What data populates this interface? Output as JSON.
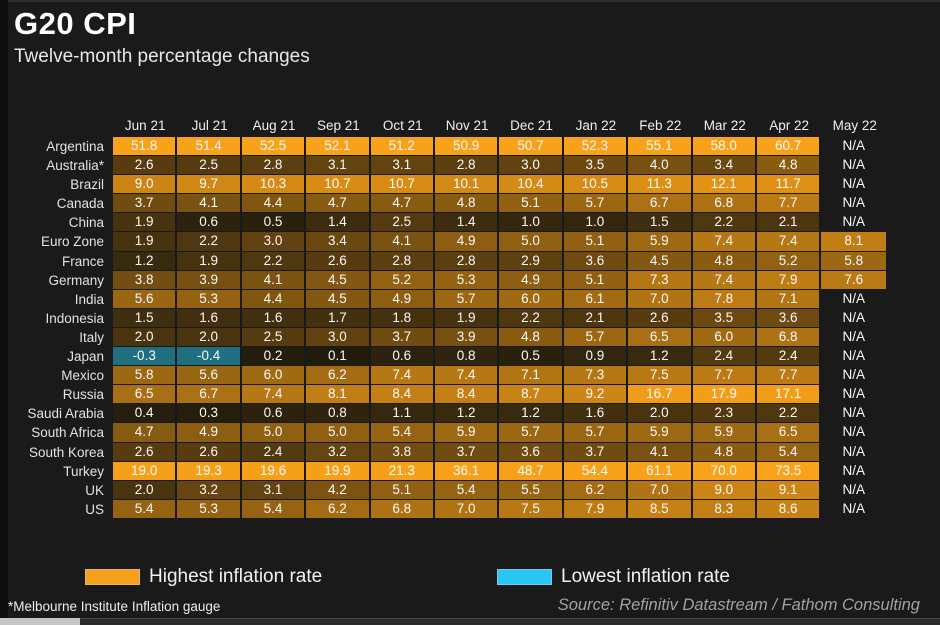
{
  "title": "G20 CPI",
  "subtitle": "Twelve-month percentage changes",
  "chart_data": {
    "type": "heatmap",
    "columns": [
      "Jun 21",
      "Jul 21",
      "Aug 21",
      "Sep 21",
      "Oct 21",
      "Nov 21",
      "Dec 21",
      "Jan 22",
      "Feb 22",
      "Mar 22",
      "Apr 22",
      "May 22"
    ],
    "na_label": "N/A",
    "rows": [
      {
        "label": "Argentina",
        "values": [
          "51.8",
          "51.4",
          "52.5",
          "52.1",
          "51.2",
          "50.9",
          "50.7",
          "52.3",
          "55.1",
          "58.0",
          "60.7",
          "N/A"
        ]
      },
      {
        "label": "Australia*",
        "values": [
          "2.6",
          "2.5",
          "2.8",
          "3.1",
          "3.1",
          "2.8",
          "3.0",
          "3.5",
          "4.0",
          "3.4",
          "4.8",
          "N/A"
        ]
      },
      {
        "label": "Brazil",
        "values": [
          "9.0",
          "9.7",
          "10.3",
          "10.7",
          "10.7",
          "10.1",
          "10.4",
          "10.5",
          "11.3",
          "12.1",
          "11.7",
          "N/A"
        ]
      },
      {
        "label": "Canada",
        "values": [
          "3.7",
          "4.1",
          "4.4",
          "4.7",
          "4.7",
          "4.8",
          "5.1",
          "5.7",
          "6.7",
          "6.8",
          "7.7",
          "N/A"
        ]
      },
      {
        "label": "China",
        "values": [
          "1.9",
          "0.6",
          "0.5",
          "1.4",
          "2.5",
          "1.4",
          "1.0",
          "1.0",
          "1.5",
          "2.2",
          "2.1",
          "N/A"
        ]
      },
      {
        "label": "Euro Zone",
        "values": [
          "1.9",
          "2.2",
          "3.0",
          "3.4",
          "4.1",
          "4.9",
          "5.0",
          "5.1",
          "5.9",
          "7.4",
          "7.4",
          "8.1"
        ]
      },
      {
        "label": "France",
        "values": [
          "1.2",
          "1.9",
          "2.2",
          "2.6",
          "2.8",
          "2.8",
          "2.9",
          "3.6",
          "4.5",
          "4.8",
          "5.2",
          "5.8"
        ]
      },
      {
        "label": "Germany",
        "values": [
          "3.8",
          "3.9",
          "4.1",
          "4.5",
          "5.2",
          "5.3",
          "4.9",
          "5.1",
          "7.3",
          "7.4",
          "7.9",
          "7.6"
        ]
      },
      {
        "label": "India",
        "values": [
          "5.6",
          "5.3",
          "4.4",
          "4.5",
          "4.9",
          "5.7",
          "6.0",
          "6.1",
          "7.0",
          "7.8",
          "7.1",
          "N/A"
        ]
      },
      {
        "label": "Indonesia",
        "values": [
          "1.5",
          "1.6",
          "1.6",
          "1.7",
          "1.8",
          "1.9",
          "2.2",
          "2.1",
          "2.6",
          "3.5",
          "3.6",
          "N/A"
        ]
      },
      {
        "label": "Italy",
        "values": [
          "2.0",
          "2.0",
          "2.5",
          "3.0",
          "3.7",
          "3.9",
          "4.8",
          "5.7",
          "6.5",
          "6.0",
          "6.8",
          "N/A"
        ]
      },
      {
        "label": "Japan",
        "values": [
          "-0.3",
          "-0.4",
          "0.2",
          "0.1",
          "0.6",
          "0.8",
          "0.5",
          "0.9",
          "1.2",
          "2.4",
          "2.4",
          "N/A"
        ]
      },
      {
        "label": "Mexico",
        "values": [
          "5.8",
          "5.6",
          "6.0",
          "6.2",
          "7.4",
          "7.4",
          "7.1",
          "7.3",
          "7.5",
          "7.7",
          "7.7",
          "N/A"
        ]
      },
      {
        "label": "Russia",
        "values": [
          "6.5",
          "6.7",
          "7.4",
          "8.1",
          "8.4",
          "8.4",
          "8.7",
          "9.2",
          "16.7",
          "17.9",
          "17.1",
          "N/A"
        ]
      },
      {
        "label": "Saudi Arabia",
        "values": [
          "0.4",
          "0.3",
          "0.6",
          "0.8",
          "1.1",
          "1.2",
          "1.2",
          "1.6",
          "2.0",
          "2.3",
          "2.2",
          "N/A"
        ]
      },
      {
        "label": "South Africa",
        "values": [
          "4.7",
          "4.9",
          "5.0",
          "5.0",
          "5.4",
          "5.9",
          "5.7",
          "5.7",
          "5.9",
          "5.9",
          "6.5",
          "N/A"
        ]
      },
      {
        "label": "South Korea",
        "values": [
          "2.6",
          "2.6",
          "2.4",
          "3.2",
          "3.8",
          "3.7",
          "3.6",
          "3.7",
          "4.1",
          "4.8",
          "5.4",
          "N/A"
        ]
      },
      {
        "label": "Turkey",
        "values": [
          "19.0",
          "19.3",
          "19.6",
          "19.9",
          "21.3",
          "36.1",
          "48.7",
          "54.4",
          "61.1",
          "70.0",
          "73.5",
          "N/A"
        ]
      },
      {
        "label": "UK",
        "values": [
          "2.0",
          "3.2",
          "3.1",
          "4.2",
          "5.1",
          "5.4",
          "5.5",
          "6.2",
          "7.0",
          "9.0",
          "9.1",
          "N/A"
        ]
      },
      {
        "label": "US",
        "values": [
          "5.4",
          "5.3",
          "5.4",
          "6.2",
          "6.8",
          "7.0",
          "7.5",
          "7.9",
          "8.5",
          "8.3",
          "8.6",
          "N/A"
        ]
      }
    ],
    "colors": {
      "highest": "#f6a01b",
      "lowest": "#29c5f4",
      "negative_cell": "#1e6f80",
      "background": "#1a1a1a"
    }
  },
  "legend": [
    {
      "label": "Highest inflation rate",
      "color": "#f6a01b"
    },
    {
      "label": "Lowest inflation rate",
      "color": "#29c5f4"
    }
  ],
  "footnote": "*Melbourne Institute Inflation gauge",
  "source": "Source: Refinitiv Datastream / Fathom Consulting"
}
